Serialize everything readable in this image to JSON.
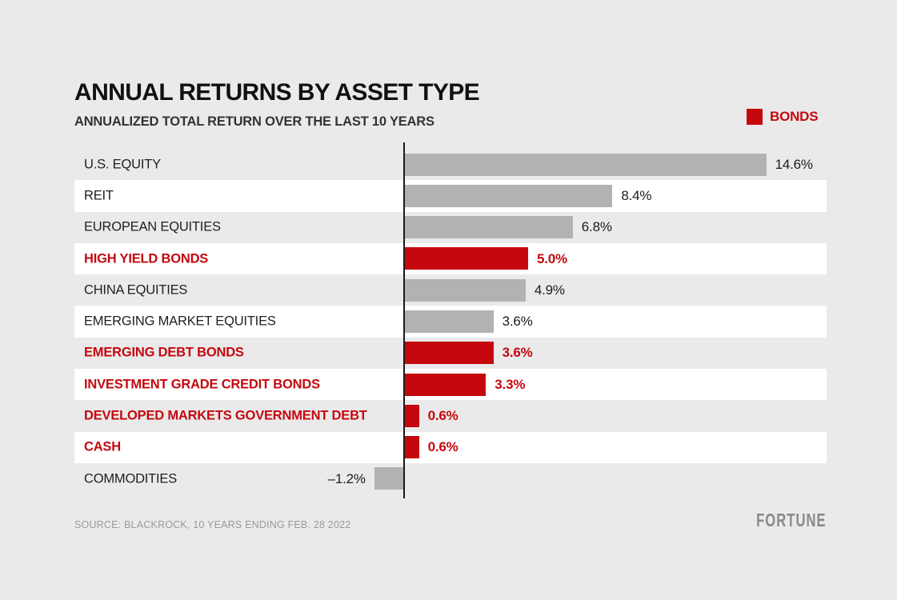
{
  "header": {
    "title": "ANNUAL RETURNS BY ASSET TYPE",
    "subtitle": "ANNUALIZED TOTAL RETURN OVER THE LAST 10 YEARS"
  },
  "legend": {
    "label": "BONDS",
    "color": "#c5080e",
    "position": "top-right"
  },
  "chart_data": {
    "type": "bar",
    "orientation": "horizontal",
    "unit": "%",
    "xlim": [
      -2,
      15.5
    ],
    "grid": false,
    "zero_axis_line": true,
    "categories": [
      "U.S. EQUITY",
      "REIT",
      "EUROPEAN EQUITIES",
      "HIGH YIELD BONDS",
      "CHINA EQUITIES",
      "EMERGING MARKET EQUITIES",
      "EMERGING DEBT BONDS",
      "INVESTMENT GRADE CREDIT BONDS",
      "DEVELOPED MARKETS GOVERNMENT DEBT",
      "CASH",
      "COMMODITIES"
    ],
    "values": [
      14.6,
      8.4,
      6.8,
      5.0,
      4.9,
      3.6,
      3.6,
      3.3,
      0.6,
      0.6,
      -1.2
    ],
    "value_labels": [
      "14.6%",
      "8.4%",
      "6.8%",
      "5.0%",
      "4.9%",
      "3.6%",
      "3.6%",
      "3.3%",
      "0.6%",
      "0.6%",
      "–1.2%"
    ],
    "is_bond": [
      false,
      false,
      false,
      true,
      false,
      false,
      true,
      true,
      true,
      true,
      false
    ],
    "colors": {
      "bonds": "#c5080e",
      "other": "#b2b2b2",
      "band": "#ffffff",
      "background": "#eaeaea",
      "axis": "#1a1a1a",
      "value_text": "#1b1b1b"
    }
  },
  "footer": {
    "source": "SOURCE: BLACKROCK, 10 YEARS ENDING FEB. 28 2022",
    "brand": "FORTUNE"
  }
}
